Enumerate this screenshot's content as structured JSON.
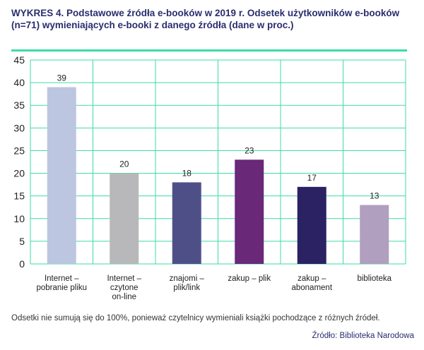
{
  "title": "WYKRES 4. Podstawowe źródła e-booków w 2019 r. Odsetek użytkowników e-booków (n=71) wymieniających e-booki z danego źródła (dane w proc.)",
  "note": "Odsetki nie sumują się do 100%, ponieważ czytelnicy wymieniali książki pochodzące z różnych źródeł.",
  "source": "Źródło: Biblioteka Narodowa",
  "colors": {
    "grid": "#3ddca4",
    "bars": [
      "#bcc6e0",
      "#b8b8ba",
      "#4f4f88",
      "#6a2878",
      "#2a2263",
      "#b09fbf"
    ]
  },
  "chart_data": {
    "type": "bar",
    "categories": [
      [
        "Internet –",
        "pobranie pliku"
      ],
      [
        "Internet –",
        "czytone",
        "on-line"
      ],
      [
        "znajomi –",
        "plik/link"
      ],
      [
        "zakup – plik"
      ],
      [
        "zakup –",
        "abonament"
      ],
      [
        "biblioteka"
      ]
    ],
    "values": [
      39,
      20,
      18,
      23,
      17,
      13
    ],
    "ylim": [
      0,
      45
    ],
    "yticks": [
      0,
      5,
      10,
      15,
      20,
      25,
      30,
      35,
      40,
      45
    ],
    "xlabel": "",
    "ylabel": "",
    "grid": true
  }
}
